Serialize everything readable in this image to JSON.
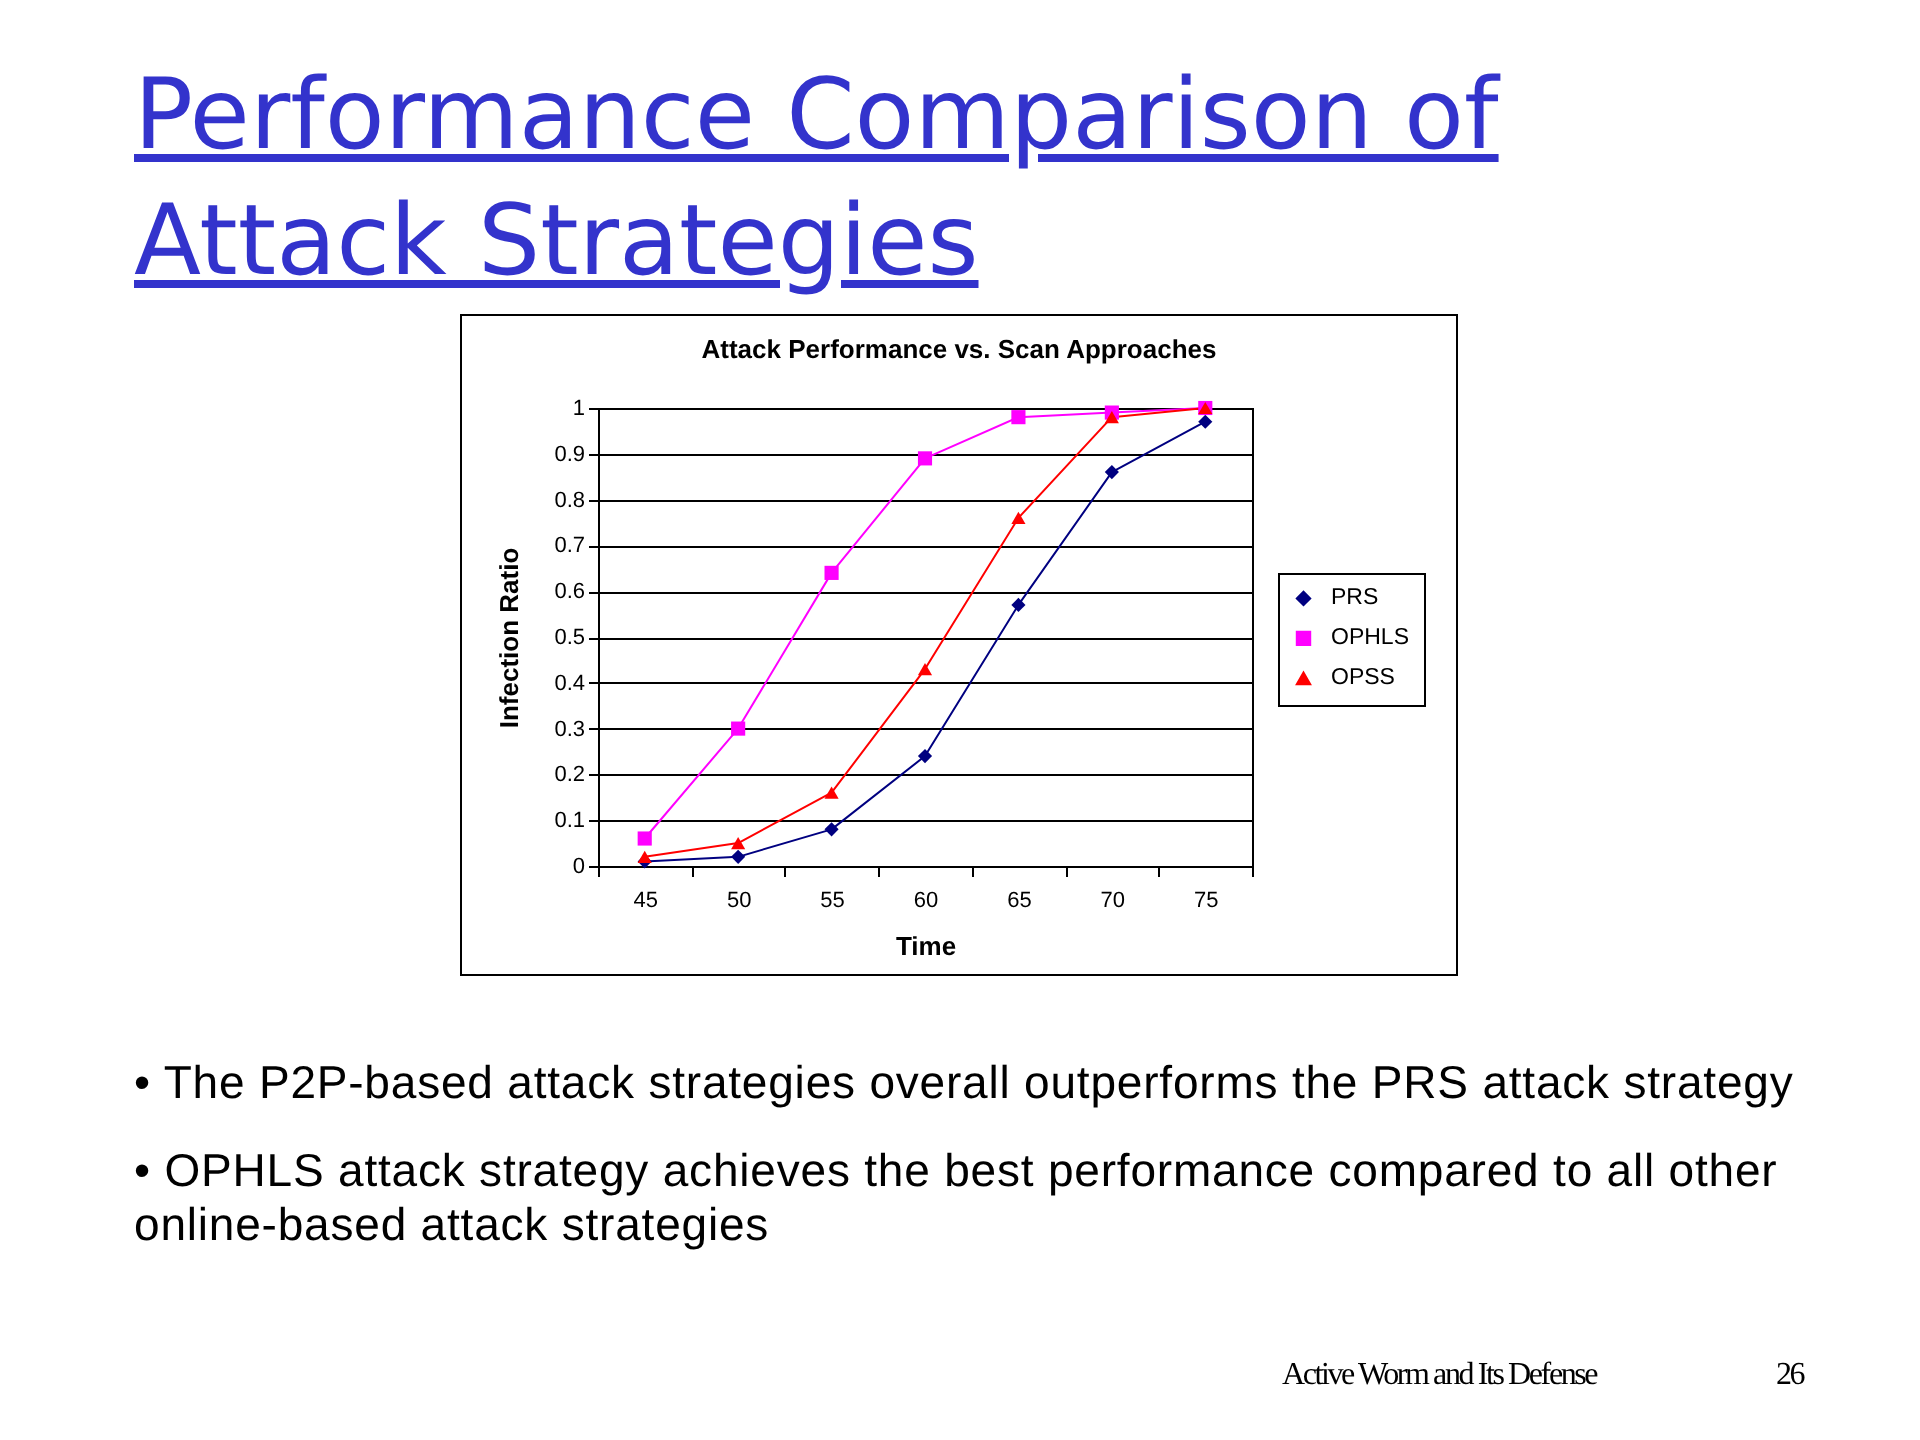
{
  "chart_data": {
    "type": "line",
    "title": "Performance Comparison of Attack Strategies",
    "subtitle": "Attack Performance vs. Scan Approaches",
    "xlabel": "Time",
    "ylabel": "Infection Ratio",
    "categories": [
      "45",
      "50",
      "55",
      "60",
      "65",
      "70",
      "75"
    ],
    "series": [
      {
        "name": "PRS",
        "color": "#000080",
        "marker": "diamond",
        "values": [
          0.01,
          0.02,
          0.08,
          0.24,
          0.57,
          0.86,
          0.97
        ]
      },
      {
        "name": "OPHLS",
        "color": "#ff00ff",
        "marker": "square",
        "values": [
          0.06,
          0.3,
          0.64,
          0.89,
          0.98,
          0.99,
          1.0
        ]
      },
      {
        "name": "OPSS",
        "color": "#ff0000",
        "marker": "triangle",
        "values": [
          0.02,
          0.05,
          0.16,
          0.43,
          0.76,
          0.98,
          1.0
        ]
      }
    ],
    "ylim": [
      0,
      1
    ],
    "yticks": [
      0,
      0.1,
      0.2,
      0.3,
      0.4,
      0.5,
      0.6,
      0.7,
      0.8,
      0.9,
      1
    ],
    "grid": "y",
    "legend": "right",
    "line_style": "solid",
    "annotations": [
      "• The P2P-based attack strategies overall outperforms the PRS attack strategy",
      "• OPHLS attack strategy achieves the best performance compared to all other online-based attack strategies",
      "Active Worm and Its Defense",
      "26"
    ]
  }
}
